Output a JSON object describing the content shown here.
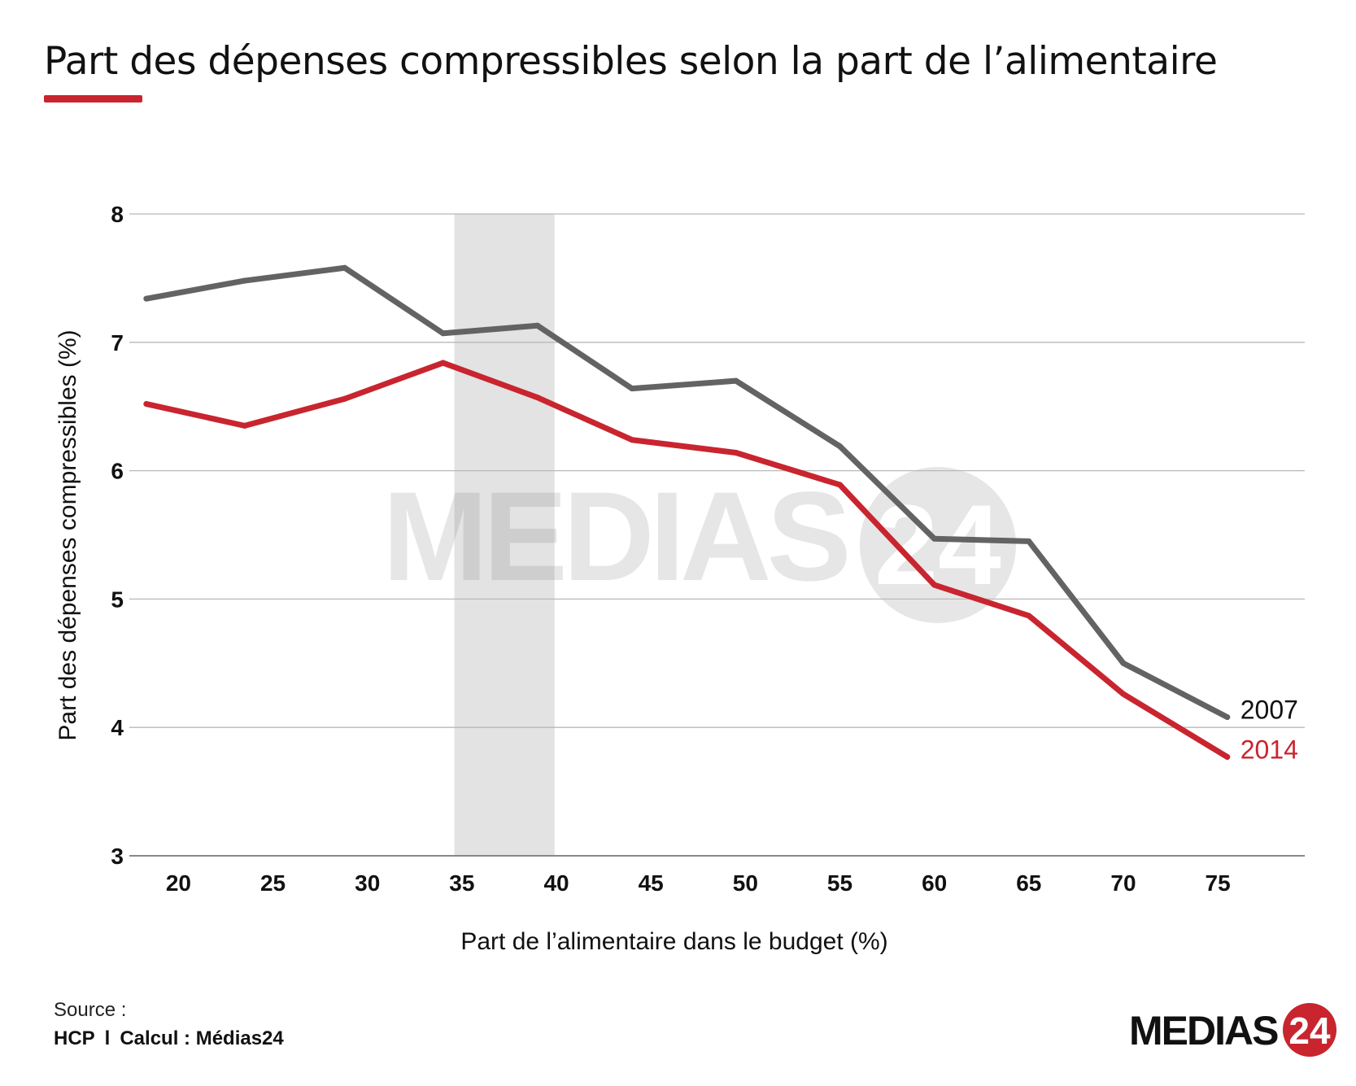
{
  "title": "Part des dépenses compressibles selon la part de l’alimentaire",
  "colors": {
    "accent": "#c8252f",
    "series_2007": "#636363",
    "series_2014": "#c8252f",
    "highlight_band": "#e3e3e3",
    "grid": "#b9b9b9"
  },
  "chart_data": {
    "type": "line",
    "xlabel": "Part de l’alimentaire dans le budget (%)",
    "ylabel": "Part des dépenses compressibles (%)",
    "x_ticks": [
      20,
      25,
      30,
      35,
      40,
      45,
      50,
      55,
      60,
      65,
      70,
      75
    ],
    "y_ticks": [
      3,
      4,
      5,
      6,
      7,
      8
    ],
    "xlim": [
      17.4,
      79.6
    ],
    "ylim": [
      3,
      8
    ],
    "grid": true,
    "highlight_band": [
      34.6,
      39.9
    ],
    "series": [
      {
        "name": "2007",
        "color": "#636363",
        "x": [
          18.3,
          23.5,
          28.8,
          34,
          39,
          44,
          49.5,
          55,
          60,
          65,
          70,
          75.5
        ],
        "y": [
          7.34,
          7.48,
          7.58,
          7.07,
          7.13,
          6.64,
          6.7,
          6.19,
          5.47,
          5.45,
          4.5,
          4.08
        ]
      },
      {
        "name": "2014",
        "color": "#c8252f",
        "x": [
          18.3,
          23.5,
          28.8,
          34,
          39,
          44,
          49.5,
          55,
          60,
          65,
          70,
          75.5
        ],
        "y": [
          6.52,
          6.35,
          6.56,
          6.84,
          6.57,
          6.24,
          6.14,
          5.89,
          5.11,
          4.87,
          4.26,
          3.77
        ]
      }
    ]
  },
  "footer": {
    "source_label": "Source :",
    "source_name": "HCP",
    "separator": "l",
    "calc": "Calcul : Médias24"
  },
  "logo": {
    "text": "MEDIAS",
    "number": "24"
  }
}
